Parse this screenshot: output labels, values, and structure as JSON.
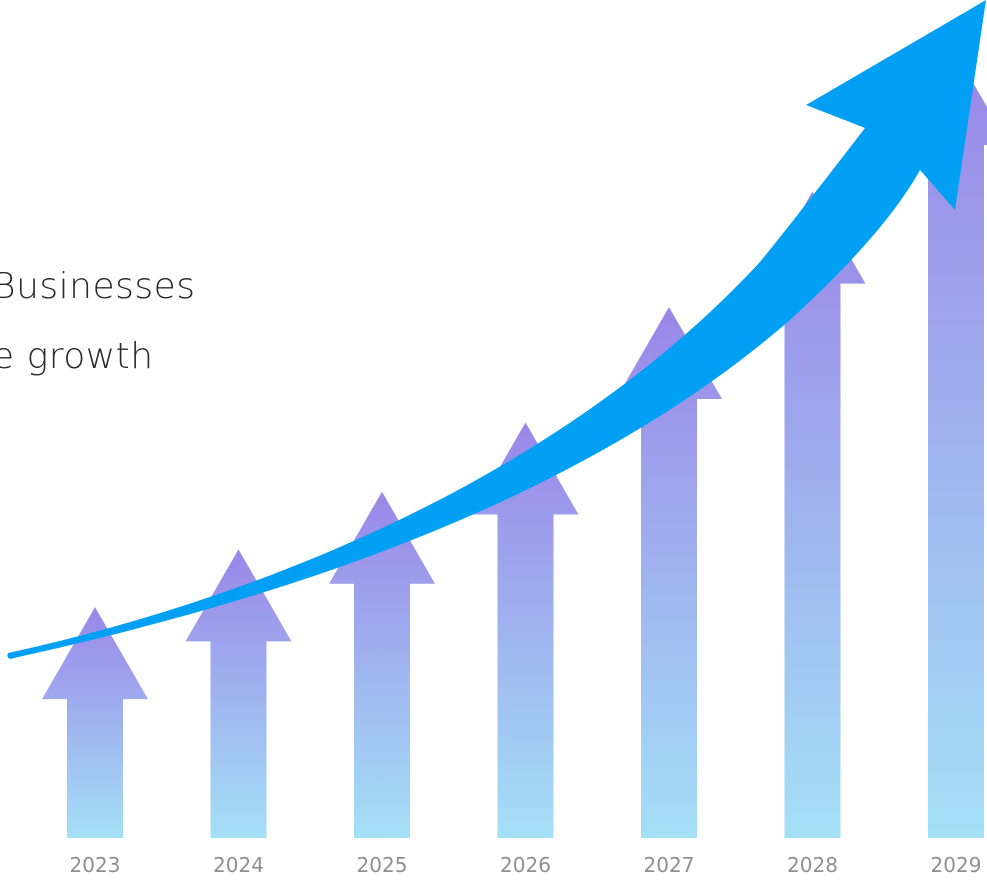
{
  "headline": {
    "line1": "Businesses",
    "line2": "e growth"
  },
  "chart_data": {
    "type": "bar",
    "style": "upward arrows with purple-to-light-blue gradient and a curved blue trend arrow",
    "categories": [
      "2023",
      "2024",
      "2025",
      "2026",
      "2027",
      "2028",
      "2029"
    ],
    "values": [
      1.0,
      1.25,
      1.5,
      1.8,
      2.3,
      2.8,
      3.4
    ],
    "ylim": [
      0,
      3.5
    ],
    "grid": false,
    "legend": "none",
    "colors": {
      "bar_top": "#9a86e8",
      "bar_bottom": "#a4e0f6",
      "trend_arrow": "#02a0f4",
      "tick_label": "#8f8f8f",
      "headline": "#2a2a2a"
    },
    "trend": {
      "direction": "upward",
      "shape": "exponential curve"
    }
  }
}
